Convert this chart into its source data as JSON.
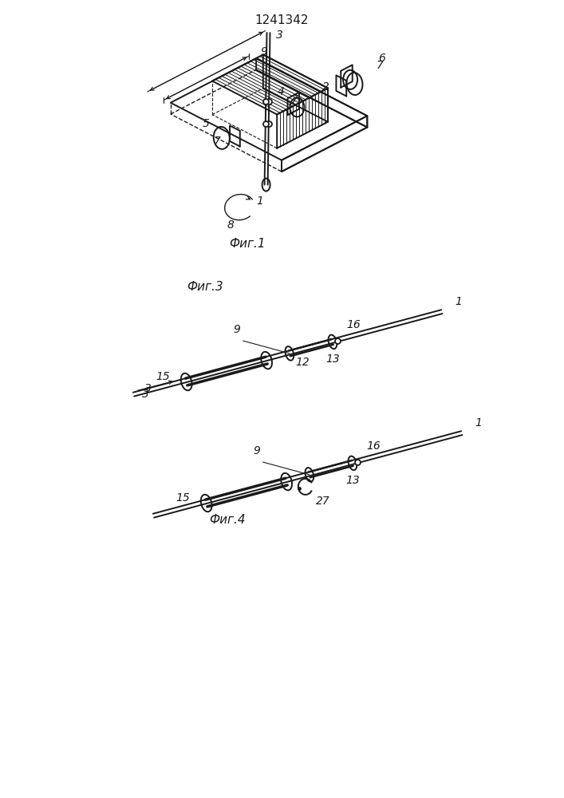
{
  "title": "1241342",
  "fig1_label": "Фиг.1",
  "fig3_label": "Фиг.3",
  "fig4_label": "Фиг.4",
  "bg_color": "#ffffff",
  "line_color": "#1a1a1a",
  "font_size_label": 11,
  "font_size_number": 10,
  "font_size_title": 11
}
